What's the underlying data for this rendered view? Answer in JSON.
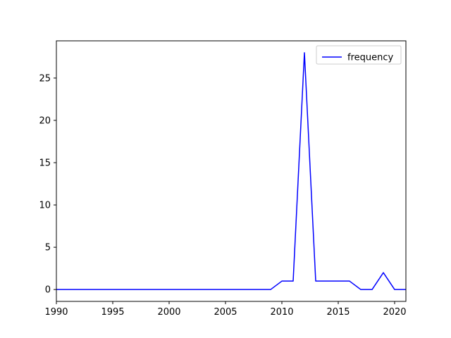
{
  "chart_data": {
    "type": "line",
    "title": "",
    "xlabel": "",
    "ylabel": "",
    "xlim": [
      1990,
      2021
    ],
    "ylim": [
      -1.4,
      29.4
    ],
    "xticks": [
      1990,
      1995,
      2000,
      2005,
      2010,
      2015,
      2020
    ],
    "yticks": [
      0,
      5,
      10,
      15,
      20,
      25
    ],
    "grid": false,
    "legend_position": "upper right",
    "x": [
      1990,
      1991,
      1992,
      1993,
      1994,
      1995,
      1996,
      1997,
      1998,
      1999,
      2000,
      2001,
      2002,
      2003,
      2004,
      2005,
      2006,
      2007,
      2008,
      2009,
      2010,
      2011,
      2012,
      2013,
      2014,
      2015,
      2016,
      2017,
      2018,
      2019,
      2020,
      2021
    ],
    "series": [
      {
        "name": "frequency",
        "color": "#0000ff",
        "values": [
          0,
          0,
          0,
          0,
          0,
          0,
          0,
          0,
          0,
          0,
          0,
          0,
          0,
          0,
          0,
          0,
          0,
          0,
          0,
          0,
          1,
          1,
          28,
          1,
          1,
          1,
          1,
          0,
          0,
          2,
          0,
          0
        ]
      }
    ]
  }
}
